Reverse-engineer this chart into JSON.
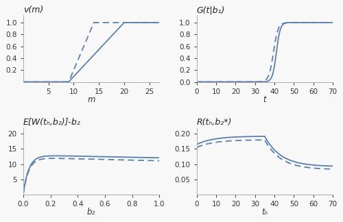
{
  "fig_width": 5.0,
  "fig_height": 3.24,
  "dpi": 100,
  "line_color": "#5b7fad",
  "line_width": 1.3,
  "bg_color": "#f8f8f8",
  "plot1_title": "v(m)",
  "plot1_xlabel": "m",
  "plot1_xlim": [
    0,
    27
  ],
  "plot1_ylim": [
    0,
    1.12
  ],
  "plot1_yticks": [
    0.2,
    0.4,
    0.6,
    0.8,
    1.0
  ],
  "plot1_xticks": [
    5,
    10,
    15,
    20,
    25
  ],
  "plot2_title": "G(t|b₁)",
  "plot2_xlabel": "t",
  "plot2_xlim": [
    0,
    70
  ],
  "plot2_ylim": [
    0,
    1.12
  ],
  "plot2_yticks": [
    0,
    0.2,
    0.4,
    0.6,
    0.8,
    1.0
  ],
  "plot2_xticks": [
    0,
    10,
    20,
    30,
    40,
    50,
    60,
    70
  ],
  "plot3_title": "E[W(tₕ,b₂)]-b₂",
  "plot3_xlabel": "b₂",
  "plot3_xlim": [
    0,
    1.0
  ],
  "plot3_ylim": [
    0,
    22
  ],
  "plot3_yticks": [
    5,
    10,
    15,
    20
  ],
  "plot3_xticks": [
    0,
    0.2,
    0.4,
    0.6,
    0.8,
    1.0
  ],
  "plot4_title": "R(tₕ,b₂*)",
  "plot4_xlabel": "tₕ",
  "plot4_xlim": [
    0,
    70
  ],
  "plot4_ylim": [
    0,
    0.22
  ],
  "plot4_yticks": [
    0.05,
    0.1,
    0.15,
    0.2
  ],
  "plot4_xticks": [
    0,
    10,
    20,
    30,
    40,
    50,
    60,
    70
  ]
}
